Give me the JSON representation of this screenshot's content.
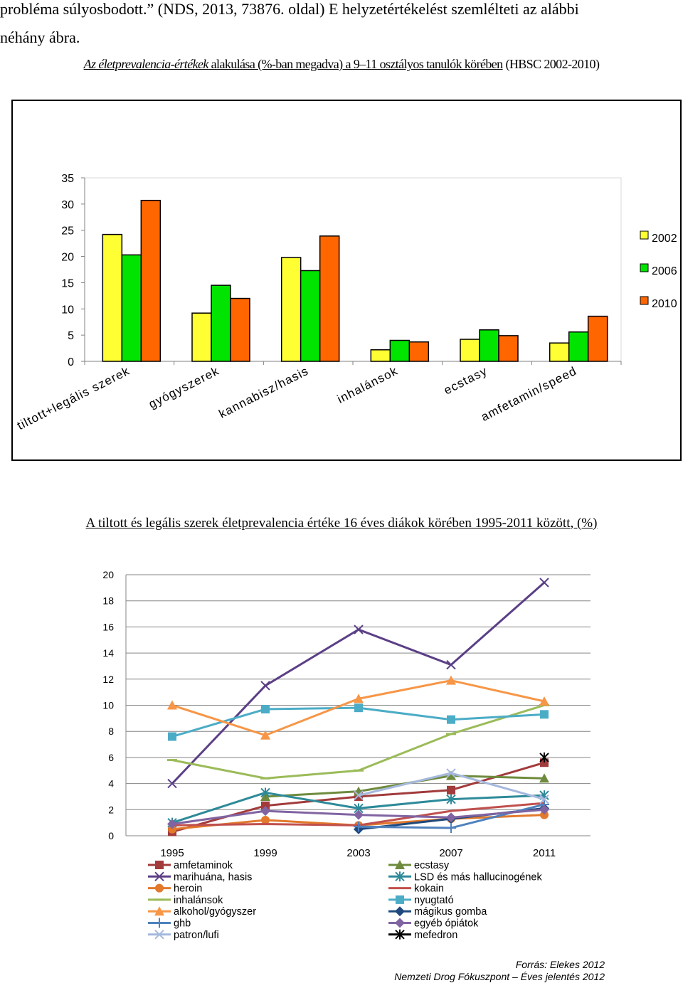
{
  "page": {
    "line1": "probléma súlyosbodott.” (NDS, 2013, 73876. oldal) E helyzetértékelést szemlélteti az alábbi",
    "line2": "néhány ábra.",
    "chart1_title_part1": "Az életprevalencia-értékek",
    "chart1_title_part2": " alakulása (%-ban megadva) a 9–11 osztályos tanulók körében",
    "chart1_title_part3": " (HBSC 2002-2010)",
    "chart2_title_part1": "A tiltott és legális szerek életprevalencia értéke 16 éves diákok körében 1995-2011 között",
    "chart2_title_part2": ", (%)",
    "source_line1": "Forrás: Elekes 2012",
    "source_line2": "Nemzeti Drog Fókuszpont – Éves jelentés 2012"
  },
  "chart_data": [
    {
      "type": "bar",
      "categories": [
        "tiltott+legális szerek",
        "gyógyszerek",
        "kannabisz/hasis",
        "inhalánsok",
        "ecstasy",
        "amfetamin/speed"
      ],
      "series": [
        {
          "name": "2002",
          "color": "#FFFF33",
          "values": [
            24.2,
            9.2,
            19.8,
            2.2,
            4.2,
            3.5
          ]
        },
        {
          "name": "2006",
          "color": "#00E400",
          "values": [
            20.3,
            14.5,
            17.3,
            4.0,
            6.0,
            5.6
          ]
        },
        {
          "name": "2010",
          "color": "#FF6600",
          "values": [
            30.7,
            12.0,
            23.9,
            3.7,
            4.9,
            8.6
          ]
        }
      ],
      "yticks": [
        "0",
        "5",
        "10",
        "15",
        "20",
        "25",
        "30",
        "35"
      ],
      "ylim": [
        0,
        35
      ],
      "grid": false,
      "legend": "right"
    },
    {
      "type": "line",
      "x": [
        "1995",
        "1999",
        "2003",
        "2007",
        "2011"
      ],
      "yticks": [
        "0",
        "2",
        "4",
        "6",
        "8",
        "10",
        "12",
        "14",
        "16",
        "18",
        "20"
      ],
      "ylim": [
        0,
        20
      ],
      "grid": true,
      "legend": "bottom",
      "series": [
        {
          "name": "amfetaminok",
          "color": "#A23B3B",
          "marker": "square",
          "values": [
            0.3,
            2.3,
            3.0,
            3.5,
            5.6
          ]
        },
        {
          "name": "ecstasy",
          "color": "#6E8B3D",
          "marker": "triangle",
          "values": [
            null,
            3.0,
            3.4,
            4.6,
            4.4
          ]
        },
        {
          "name": "marihuána, hasis",
          "color": "#5B3F86",
          "marker": "x",
          "values": [
            4.0,
            11.5,
            15.8,
            13.1,
            19.4
          ]
        },
        {
          "name": "LSD és más hallucinogének",
          "color": "#2D8A99",
          "marker": "star",
          "values": [
            1.0,
            3.3,
            2.1,
            2.8,
            3.1
          ]
        },
        {
          "name": "heroin",
          "color": "#E2792B",
          "marker": "circle",
          "values": [
            0.5,
            1.2,
            0.8,
            1.3,
            1.6
          ]
        },
        {
          "name": "kokain",
          "color": "#C0504D",
          "marker": "none",
          "values": [
            0.8,
            0.9,
            0.8,
            1.9,
            2.5
          ]
        },
        {
          "name": "inhalánsok",
          "color": "#9BBB59",
          "marker": "dash",
          "values": [
            5.8,
            4.4,
            5.0,
            7.8,
            10.0
          ]
        },
        {
          "name": "nyugtató",
          "color": "#4BACC6",
          "marker": "square",
          "values": [
            7.6,
            9.7,
            9.8,
            8.9,
            9.3
          ]
        },
        {
          "name": "alkohol/gyógyszer",
          "color": "#F79646",
          "marker": "triangle",
          "values": [
            10.0,
            7.7,
            10.5,
            11.9,
            10.3
          ]
        },
        {
          "name": "mágikus gomba",
          "color": "#1F497D",
          "marker": "diamond",
          "values": [
            null,
            null,
            0.5,
            1.3,
            2.1
          ]
        },
        {
          "name": "ghb",
          "color": "#4F81BD",
          "marker": "plus",
          "values": [
            null,
            null,
            0.7,
            0.6,
            2.4
          ]
        },
        {
          "name": "egyéb ópiátok",
          "color": "#8064A2",
          "marker": "diamond",
          "values": [
            0.9,
            1.9,
            1.6,
            1.4,
            2.0
          ]
        },
        {
          "name": "patron/lufi",
          "color": "#A5B8DD",
          "marker": "x",
          "values": [
            null,
            null,
            3.1,
            4.8,
            2.8
          ]
        },
        {
          "name": "mefedron",
          "color": "#000000",
          "marker": "star",
          "values": [
            null,
            null,
            null,
            null,
            6.0
          ]
        }
      ]
    }
  ]
}
